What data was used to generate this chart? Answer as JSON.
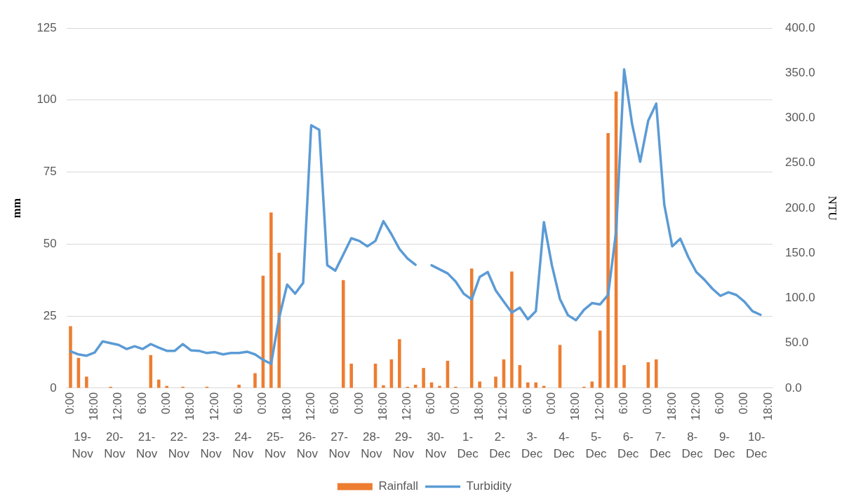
{
  "chart_data": {
    "type": "bar",
    "categories": [
      "0:00",
      null,
      null,
      "18:00",
      null,
      null,
      "12:00",
      null,
      null,
      "6:00",
      null,
      null,
      "0:00",
      null,
      null,
      "18:00",
      null,
      null,
      "12:00",
      null,
      null,
      "6:00",
      null,
      null,
      "0:00",
      null,
      null,
      "18:00",
      null,
      null,
      "12:00",
      null,
      null,
      "6:00",
      null,
      null,
      "0:00",
      null,
      null,
      "18:00",
      null,
      null,
      "12:00",
      null,
      null,
      "6:00",
      null,
      null,
      "0:00",
      null,
      null,
      "18:00",
      null,
      null,
      "12:00",
      null,
      null,
      "6:00",
      null,
      null,
      "0:00",
      null,
      null,
      "18:00",
      null,
      null,
      "12:00",
      null,
      null,
      "6:00",
      null,
      null,
      "0:00",
      null,
      null,
      "18:00",
      null,
      null,
      "12:00",
      null,
      null,
      "6:00",
      null,
      null,
      "0:00",
      null,
      null,
      "18:00"
    ],
    "annotations": [
      "19-Nov",
      "20-Nov",
      "21-Nov",
      "22-Nov",
      "23-Nov",
      "24-Nov",
      "25-Nov",
      "26-Nov",
      "27-Nov",
      "28-Nov",
      "29-Nov",
      "30-Nov",
      "1-Dec",
      "2-Dec",
      "3-Dec",
      "4-Dec",
      "5-Dec",
      "6-Dec",
      "7-Dec",
      "8-Dec",
      "9-Dec",
      "10-Dec"
    ],
    "series": [
      {
        "name": "Rainfall",
        "color": "#ed7d31",
        "values": [
          21.5,
          10.5,
          4,
          0,
          0,
          0.5,
          0,
          0,
          0,
          0,
          11.5,
          3,
          0.8,
          0,
          0.5,
          0,
          0,
          0.5,
          0,
          0,
          0,
          1.2,
          0,
          5.2,
          39,
          61,
          47,
          0,
          0,
          0,
          0,
          0,
          0,
          0,
          37.5,
          8.5,
          0,
          0,
          8.5,
          1,
          10,
          17,
          0.5,
          1.2,
          7,
          2,
          0.8,
          9.5,
          0.5,
          0,
          41.5,
          2.3,
          0,
          4,
          10,
          40.5,
          8,
          2,
          2,
          0.8,
          0,
          15,
          0,
          0,
          0.5,
          2.3,
          20,
          88.5,
          103,
          8,
          0,
          0,
          9,
          10,
          0,
          0,
          0,
          0,
          0,
          0,
          0,
          0,
          0,
          0,
          0,
          0,
          0,
          0
        ]
      },
      {
        "name": "Turbidity",
        "type": "line",
        "axis": "y2",
        "color": "#5b9bd5",
        "values": [
          41,
          37.5,
          36,
          39.5,
          52,
          50,
          48,
          43.5,
          46.5,
          43.5,
          49,
          45,
          41.5,
          41.5,
          49,
          42,
          41.5,
          39,
          40,
          37.5,
          39,
          39,
          40.5,
          37.5,
          31.5,
          27,
          78,
          115,
          105,
          117,
          292,
          287,
          136.5,
          130.5,
          148.5,
          166.5,
          163.5,
          157.5,
          163.5,
          185.5,
          171,
          154.5,
          144,
          137,
          null,
          136.5,
          132,
          127.5,
          118.5,
          105,
          98.5,
          123.5,
          129,
          108.5,
          96,
          84,
          89.5,
          76.5,
          85.5,
          184.5,
          136.5,
          99,
          81,
          75.5,
          87,
          94.5,
          93,
          103.5,
          174,
          354,
          293,
          251.5,
          297,
          316,
          204,
          157.5,
          166,
          145.5,
          129,
          120.5,
          110.5,
          102.5,
          106.5,
          103.5,
          96,
          85.5,
          81.5,
          null
        ]
      }
    ],
    "ylabel": "mm",
    "y2label": "NTU",
    "ylim": [
      0,
      125
    ],
    "yticks": [
      0,
      25,
      50,
      75,
      100,
      125
    ],
    "y2lim": [
      0,
      400
    ],
    "y2ticks": [
      {
        "value": 0,
        "label": "0.0"
      },
      {
        "value": 50,
        "label": "50.0"
      },
      {
        "value": 100,
        "label": "100.0"
      },
      {
        "value": 150,
        "label": "150.0"
      },
      {
        "value": 200,
        "label": "200.0"
      },
      {
        "value": 250,
        "label": "250.0"
      },
      {
        "value": 300,
        "label": "300.0"
      },
      {
        "value": 350,
        "label": "350.0"
      },
      {
        "value": 400,
        "label": "400.0"
      }
    ],
    "grid": "y",
    "legend": "bottom",
    "marker": "none",
    "line_style": "solid"
  }
}
